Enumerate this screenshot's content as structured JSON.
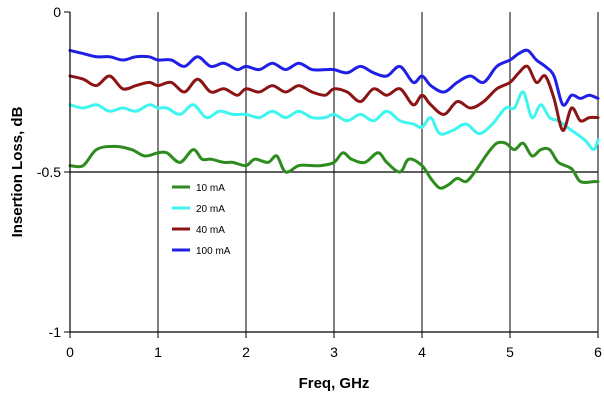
{
  "chart_data": {
    "type": "line",
    "xlabel": "Freq, GHz",
    "ylabel": "Insertion Loss, dB",
    "xlim": [
      0,
      6
    ],
    "ylim": [
      -1,
      0
    ],
    "x_ticks": [
      0,
      1,
      2,
      3,
      4,
      5,
      6
    ],
    "x_tick_labels": [
      "0",
      "1",
      "2",
      "3",
      "4",
      "5",
      "6"
    ],
    "y_ticks": [
      0,
      -0.5,
      -1
    ],
    "y_tick_labels": [
      "0",
      "-0.5",
      "-1"
    ],
    "vertical_grid": true,
    "reference_line_y": -0.5,
    "legend_placement": "lower-left inside plot",
    "series": [
      {
        "name": "10 mA",
        "color": "#2e8b1e",
        "x": [
          0,
          0.15,
          0.3,
          0.5,
          0.7,
          0.85,
          1.0,
          1.1,
          1.25,
          1.4,
          1.5,
          1.6,
          1.75,
          1.85,
          2.0,
          2.1,
          2.25,
          2.35,
          2.45,
          2.6,
          2.75,
          2.85,
          3.0,
          3.1,
          3.2,
          3.35,
          3.5,
          3.6,
          3.75,
          3.85,
          4.0,
          4.1,
          4.2,
          4.3,
          4.4,
          4.5,
          4.6,
          4.75,
          4.85,
          4.95,
          5.05,
          5.15,
          5.25,
          5.35,
          5.45,
          5.55,
          5.7,
          5.8,
          5.95,
          6.0
        ],
        "y": [
          -0.48,
          -0.48,
          -0.43,
          -0.42,
          -0.43,
          -0.45,
          -0.44,
          -0.44,
          -0.47,
          -0.43,
          -0.46,
          -0.46,
          -0.47,
          -0.47,
          -0.48,
          -0.46,
          -0.47,
          -0.45,
          -0.5,
          -0.48,
          -0.48,
          -0.48,
          -0.47,
          -0.44,
          -0.46,
          -0.47,
          -0.44,
          -0.47,
          -0.5,
          -0.46,
          -0.48,
          -0.52,
          -0.55,
          -0.54,
          -0.52,
          -0.53,
          -0.5,
          -0.44,
          -0.41,
          -0.41,
          -0.43,
          -0.41,
          -0.45,
          -0.43,
          -0.43,
          -0.47,
          -0.49,
          -0.53,
          -0.53,
          -0.53
        ]
      },
      {
        "name": "20 mA",
        "color": "#3ff5f0",
        "x": [
          0,
          0.15,
          0.3,
          0.45,
          0.6,
          0.75,
          0.9,
          1.0,
          1.1,
          1.25,
          1.4,
          1.55,
          1.7,
          1.85,
          2.0,
          2.15,
          2.3,
          2.45,
          2.6,
          2.75,
          2.9,
          3.0,
          3.15,
          3.3,
          3.45,
          3.6,
          3.75,
          3.9,
          4.0,
          4.1,
          4.2,
          4.35,
          4.5,
          4.65,
          4.8,
          4.95,
          5.05,
          5.15,
          5.25,
          5.35,
          5.45,
          5.55,
          5.7,
          5.85,
          5.95,
          6.0
        ],
        "y": [
          -0.29,
          -0.3,
          -0.29,
          -0.31,
          -0.3,
          -0.31,
          -0.29,
          -0.3,
          -0.3,
          -0.32,
          -0.29,
          -0.33,
          -0.31,
          -0.32,
          -0.32,
          -0.33,
          -0.31,
          -0.33,
          -0.31,
          -0.33,
          -0.33,
          -0.32,
          -0.34,
          -0.32,
          -0.34,
          -0.31,
          -0.34,
          -0.35,
          -0.36,
          -0.33,
          -0.38,
          -0.37,
          -0.35,
          -0.38,
          -0.35,
          -0.3,
          -0.3,
          -0.25,
          -0.33,
          -0.29,
          -0.33,
          -0.34,
          -0.37,
          -0.4,
          -0.43,
          -0.4
        ]
      },
      {
        "name": "40 mA",
        "color": "#8b1414",
        "x": [
          0,
          0.15,
          0.3,
          0.45,
          0.6,
          0.75,
          0.9,
          1.0,
          1.15,
          1.3,
          1.45,
          1.6,
          1.75,
          1.9,
          2.0,
          2.15,
          2.3,
          2.45,
          2.6,
          2.75,
          2.9,
          3.0,
          3.15,
          3.3,
          3.45,
          3.6,
          3.75,
          3.9,
          4.0,
          4.1,
          4.25,
          4.4,
          4.55,
          4.7,
          4.85,
          5.0,
          5.1,
          5.2,
          5.3,
          5.4,
          5.5,
          5.6,
          5.7,
          5.8,
          5.9,
          6.0
        ],
        "y": [
          -0.2,
          -0.21,
          -0.23,
          -0.2,
          -0.24,
          -0.23,
          -0.22,
          -0.23,
          -0.22,
          -0.25,
          -0.21,
          -0.25,
          -0.24,
          -0.26,
          -0.24,
          -0.25,
          -0.23,
          -0.25,
          -0.23,
          -0.25,
          -0.26,
          -0.24,
          -0.25,
          -0.28,
          -0.24,
          -0.26,
          -0.24,
          -0.29,
          -0.26,
          -0.29,
          -0.32,
          -0.28,
          -0.3,
          -0.28,
          -0.24,
          -0.22,
          -0.19,
          -0.17,
          -0.22,
          -0.2,
          -0.27,
          -0.37,
          -0.3,
          -0.34,
          -0.33,
          -0.33
        ]
      },
      {
        "name": "100 mA",
        "color": "#1f1fe6",
        "x": [
          0,
          0.15,
          0.3,
          0.45,
          0.6,
          0.75,
          0.9,
          1.0,
          1.15,
          1.3,
          1.45,
          1.6,
          1.75,
          1.9,
          2.0,
          2.15,
          2.3,
          2.45,
          2.6,
          2.75,
          2.9,
          3.0,
          3.15,
          3.3,
          3.45,
          3.6,
          3.75,
          3.9,
          4.0,
          4.1,
          4.25,
          4.4,
          4.55,
          4.7,
          4.85,
          5.0,
          5.1,
          5.2,
          5.3,
          5.4,
          5.5,
          5.6,
          5.7,
          5.8,
          5.9,
          6.0
        ],
        "y": [
          -0.12,
          -0.13,
          -0.14,
          -0.14,
          -0.15,
          -0.14,
          -0.14,
          -0.15,
          -0.15,
          -0.17,
          -0.14,
          -0.17,
          -0.16,
          -0.18,
          -0.17,
          -0.18,
          -0.16,
          -0.18,
          -0.16,
          -0.18,
          -0.18,
          -0.18,
          -0.19,
          -0.17,
          -0.19,
          -0.2,
          -0.17,
          -0.22,
          -0.2,
          -0.23,
          -0.25,
          -0.22,
          -0.2,
          -0.22,
          -0.17,
          -0.15,
          -0.13,
          -0.12,
          -0.15,
          -0.17,
          -0.2,
          -0.29,
          -0.26,
          -0.27,
          -0.26,
          -0.27
        ]
      }
    ]
  }
}
